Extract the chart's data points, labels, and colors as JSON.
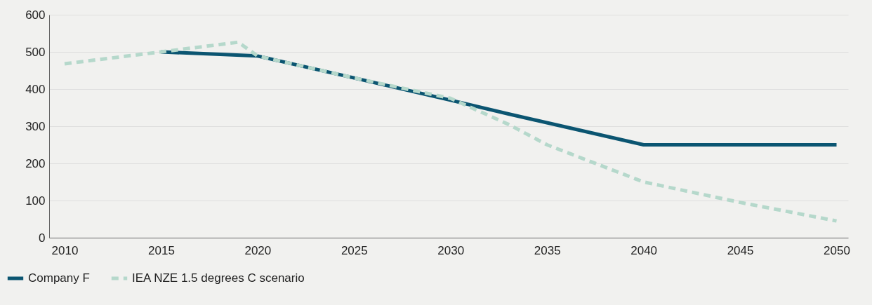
{
  "chart_data": {
    "type": "line",
    "xlim": [
      2009.2,
      2050.6
    ],
    "xticks": [
      2010,
      2015,
      2020,
      2025,
      2030,
      2035,
      2040,
      2045,
      2050
    ],
    "ylim": [
      0,
      600
    ],
    "yticks": [
      0,
      100,
      200,
      300,
      400,
      500,
      600
    ],
    "grid": "y",
    "legend": "bottom left",
    "series": [
      {
        "name": "Company F",
        "color": "#0b5571",
        "line_style": "solid",
        "x": [
          2015,
          2020,
          2025,
          2030,
          2033,
          2040,
          2050
        ],
        "values": [
          500,
          489,
          430,
          370,
          333,
          250,
          250
        ]
      },
      {
        "name": "IEA NZE 1.5 degrees C scenario",
        "color": "#b5d8cb",
        "line_style": "dashed",
        "x": [
          2010,
          2015,
          2019,
          2020,
          2025,
          2030,
          2033,
          2035,
          2040,
          2045,
          2050
        ],
        "values": [
          468,
          500,
          526,
          489,
          430,
          375,
          305,
          250,
          150,
          95,
          45
        ]
      }
    ]
  }
}
